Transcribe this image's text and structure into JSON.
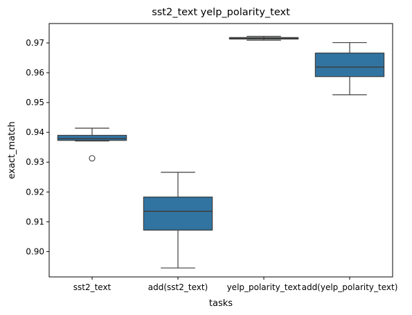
{
  "chart_data": {
    "type": "box",
    "title": "sst2_text yelp_polarity_text",
    "xlabel": "tasks",
    "ylabel": "exact_match",
    "ylim": [
      0.8915,
      0.9765
    ],
    "yticks": [
      0.9,
      0.91,
      0.92,
      0.93,
      0.94,
      0.95,
      0.96,
      0.97
    ],
    "ytick_labels": [
      "0.90",
      "0.91",
      "0.92",
      "0.93",
      "0.94",
      "0.95",
      "0.96",
      "0.97"
    ],
    "categories": [
      "sst2_text",
      "add(sst2_text)",
      "yelp_polarity_text",
      "add(yelp_polarity_text)"
    ],
    "boxes": [
      {
        "whisker_low": 0.9371,
        "q1": 0.9373,
        "median": 0.9379,
        "q3": 0.939,
        "whisker_high": 0.9414,
        "outliers": [
          0.9313
        ]
      },
      {
        "whisker_low": 0.8945,
        "q1": 0.9072,
        "median": 0.9135,
        "q3": 0.9183,
        "whisker_high": 0.9266,
        "outliers": []
      },
      {
        "whisker_low": 0.9709,
        "q1": 0.9713,
        "median": 0.9716,
        "q3": 0.9718,
        "whisker_high": 0.9722,
        "outliers": []
      },
      {
        "whisker_low": 0.9526,
        "q1": 0.9587,
        "median": 0.9619,
        "q3": 0.9666,
        "whisker_high": 0.9701,
        "outliers": []
      }
    ],
    "box_color": "#3274a1",
    "line_color": "#3d3d3d",
    "grid": false,
    "legend": "none"
  }
}
